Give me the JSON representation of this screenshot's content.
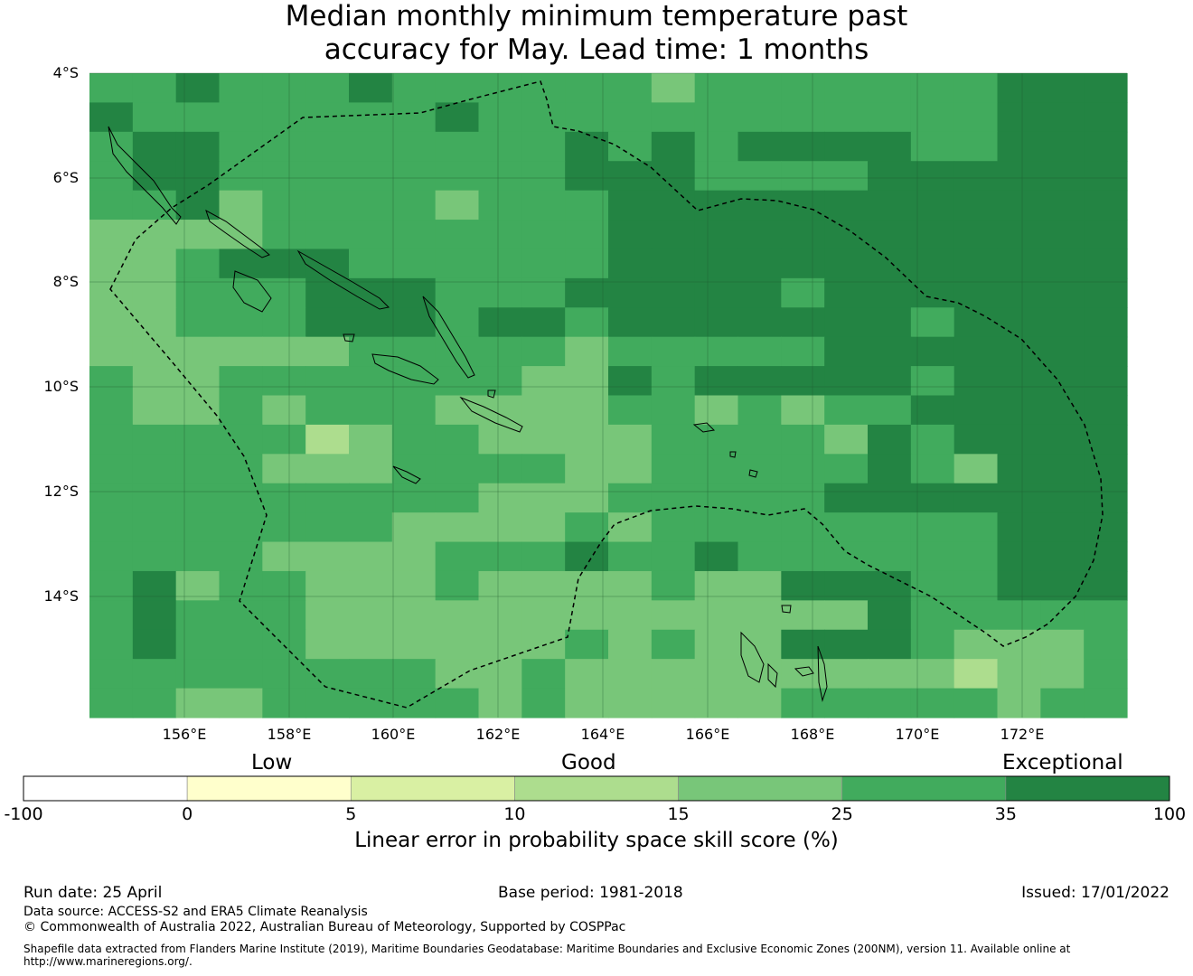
{
  "title_line1": "Median monthly minimum temperature past",
  "title_line2": "accuracy for May. Lead time: 1 months",
  "map": {
    "lat_labels": [
      "4°S",
      "6°S",
      "8°S",
      "10°S",
      "12°S",
      "14°S"
    ],
    "lon_labels": [
      "156°E",
      "158°E",
      "160°E",
      "162°E",
      "164°E",
      "166°E",
      "168°E",
      "170°E",
      "172°E"
    ],
    "legend_categories": [
      "Low",
      "Good",
      "Exceptional"
    ],
    "colorbar_ticks": [
      "-100",
      "0",
      "5",
      "10",
      "15",
      "25",
      "35",
      "100"
    ],
    "colorbar_colors": [
      "#ffffff",
      "#ffffcc",
      "#d9f0a3",
      "#addd8e",
      "#78c679",
      "#41ab5d",
      "#238443"
    ],
    "colorbar_label": "Linear error in probability space skill score (%)",
    "colors": {
      "level0": "#d9f0a3",
      "level1": "#addd8e",
      "level2": "#78c679",
      "level3": "#41ab5d",
      "level4": "#238443"
    }
  },
  "footer": {
    "run_date": "Run date: 25 April",
    "base_period": "Base period: 1981-2018",
    "issued": "Issued: 17/01/2022",
    "data_source": "Data source: ACCESS-S2 and ERA5 Climate Reanalysis",
    "copyright": "© Commonwealth of Australia 2022, Australian Bureau of Meteorology, Supported by COSPPac",
    "shapefile_line1": "Shapefile data extracted from Flanders Marine Institute (2019), Maritime Boundaries Geodatabase: Maritime Boundaries and Exclusive Economic Zones (200NM), version 11. Available online at",
    "shapefile_line2": "http://www.marineregions.org/."
  }
}
